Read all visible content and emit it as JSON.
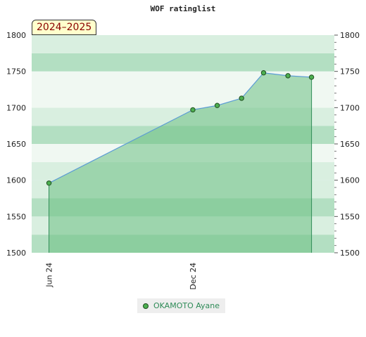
{
  "title": "WOF ratinglist",
  "badge": "2024–2025",
  "legend": {
    "label": "OKAMOTO Ayane"
  },
  "colors": {
    "line": "#5b9bd5",
    "area": "#6cbf84",
    "marker": "#4caf50",
    "marker_edge": "#1f4d1f",
    "band_dark": "#b3dfc2",
    "band_light": "#d9efe0",
    "band_lighter": "#f0f8f2"
  },
  "chart_data": {
    "type": "area",
    "title": "WOF ratinglist",
    "xlabel": "",
    "ylabel": "",
    "ylim": [
      1500,
      1800
    ],
    "yticks": [
      1500,
      1550,
      1600,
      1650,
      1700,
      1750,
      1800
    ],
    "xlim": [
      "2024-05-10",
      "2025-05-30"
    ],
    "xticks": [
      {
        "date": "2024-06-01",
        "label": "Jun 24"
      },
      {
        "date": "2024-12-01",
        "label": "Dec 24"
      }
    ],
    "grid": false,
    "legend_position": "bottom",
    "series": [
      {
        "name": "OKAMOTO Ayane",
        "points": [
          {
            "x": "2024-06-01",
            "y": 1596
          },
          {
            "x": "2024-12-01",
            "y": 1697
          },
          {
            "x": "2025-01-01",
            "y": 1703
          },
          {
            "x": "2025-02-01",
            "y": 1713
          },
          {
            "x": "2025-03-01",
            "y": 1748
          },
          {
            "x": "2025-04-01",
            "y": 1744
          },
          {
            "x": "2025-05-01",
            "y": 1742
          }
        ]
      }
    ]
  }
}
